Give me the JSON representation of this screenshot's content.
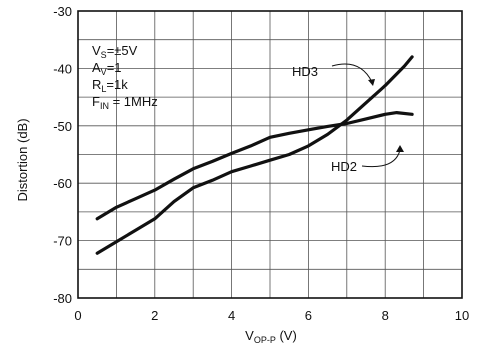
{
  "chart_data": {
    "type": "line",
    "xlabel": "V",
    "xlabel_sub": "OP-P",
    "xlabel_unit": " (V)",
    "ylabel": "Distortion (dB)",
    "xlim": [
      0,
      10
    ],
    "ylim": [
      -80,
      -30
    ],
    "xticks": [
      0,
      2,
      4,
      6,
      8,
      10
    ],
    "yticks": [
      -80,
      -70,
      -60,
      -50,
      -40,
      -30
    ],
    "grid": true,
    "conditions": [
      {
        "main": "V",
        "sub": "S",
        "rest": "=±5V"
      },
      {
        "main": "A",
        "sub": "V",
        "rest": "=1"
      },
      {
        "main": "R",
        "sub": "L",
        "rest": "=1k"
      },
      {
        "main": "F",
        "sub": "IN",
        "rest": " = 1MHz"
      }
    ],
    "series": [
      {
        "name": "HD3",
        "x": [
          0.5,
          1,
          1.5,
          2,
          2.5,
          3,
          3.5,
          4,
          4.5,
          5,
          5.5,
          6,
          6.5,
          7,
          7.5,
          8,
          8.5,
          8.7
        ],
        "y": [
          -72.2,
          -70.2,
          -68.2,
          -66.2,
          -63.2,
          -60.8,
          -59.5,
          -58.0,
          -57.0,
          -56.0,
          -55.0,
          -53.5,
          -51.5,
          -49.0,
          -46.0,
          -43.0,
          -39.6,
          -38.0
        ]
      },
      {
        "name": "HD2",
        "x": [
          0.5,
          1,
          1.5,
          2,
          2.5,
          3,
          3.5,
          4,
          4.5,
          5,
          5.5,
          6,
          6.5,
          7,
          7.5,
          8,
          8.3,
          8.7
        ],
        "y": [
          -66.2,
          -64.2,
          -62.7,
          -61.2,
          -59.3,
          -57.5,
          -56.2,
          -54.8,
          -53.5,
          -52.0,
          -51.3,
          -50.7,
          -50.1,
          -49.6,
          -48.8,
          -48.0,
          -47.7,
          -48.0
        ]
      }
    ]
  }
}
